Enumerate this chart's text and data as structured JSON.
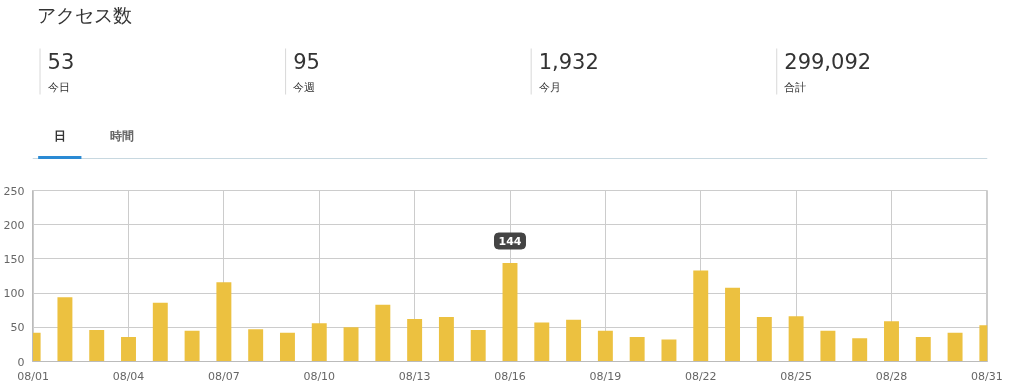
{
  "chart_data": [
    {
      "type": "other",
      "title": "アクセス数",
      "annotations": [
        "53",
        "今日",
        "95",
        "今週",
        "1,932",
        "今月",
        "299,092",
        "合計",
        "日",
        "時間"
      ]
    },
    {
      "type": "bar",
      "color": "#ecc140",
      "categories": [
        "08/01",
        null,
        null,
        "08/04",
        null,
        null,
        "08/07",
        null,
        null,
        "08/10",
        null,
        null,
        "08/13",
        null,
        null,
        "08/16",
        null,
        null,
        "08/19",
        null,
        null,
        "08/22",
        null,
        null,
        "08/25",
        null,
        null,
        "08/28",
        null,
        null,
        "08/31"
      ],
      "values": [
        42,
        94,
        46,
        36,
        86,
        45,
        116,
        47,
        42,
        56,
        50,
        83,
        62,
        65,
        46,
        144,
        57,
        61,
        45,
        36,
        32,
        133,
        108,
        65,
        66,
        45,
        34,
        59,
        36,
        42,
        53
      ],
      "ylim": [
        0,
        250
      ],
      "yticks": [
        0,
        50,
        100,
        150,
        200,
        250
      ],
      "grid": true,
      "annotations": [
        {
          "text": "144",
          "x": "08/16",
          "y": 144
        }
      ]
    }
  ]
}
